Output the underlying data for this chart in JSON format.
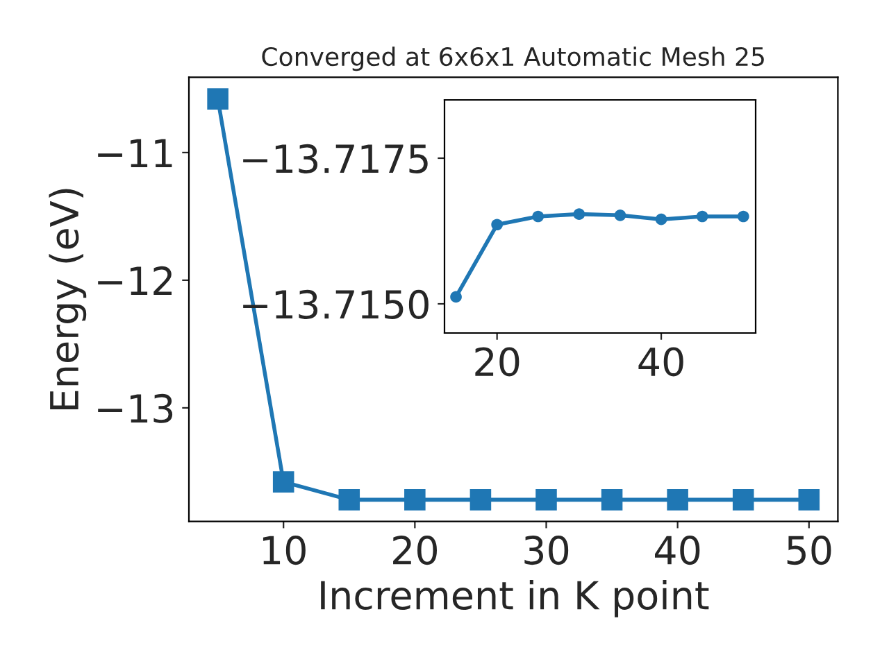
{
  "chart_data": [
    {
      "type": "line",
      "title": "Converged at 6x6x1 Automatic Mesh 25",
      "xlabel": "Increment in K point",
      "ylabel": "Energy (eV)",
      "x": [
        5,
        10,
        15,
        20,
        25,
        30,
        35,
        40,
        45,
        50
      ],
      "series": [
        {
          "color": "#1f77b4",
          "values": [
            -10.58,
            -13.58,
            -13.72,
            -13.72,
            -13.72,
            -13.72,
            -13.72,
            -13.72,
            -13.72,
            -13.72
          ]
        }
      ],
      "xlim": [
        2.8,
        52.2
      ],
      "ylim": [
        -13.89,
        -10.41
      ],
      "xticks": [
        10,
        20,
        30,
        40,
        50
      ],
      "yticks": [
        {
          "value": -13,
          "label": "−13"
        },
        {
          "value": -12,
          "label": "−12"
        },
        {
          "value": -11,
          "label": "−11"
        }
      ],
      "marker": "square",
      "line_style": "solid",
      "grid": false,
      "legend": false
    },
    {
      "type": "line",
      "x": [
        15,
        20,
        25,
        30,
        35,
        40,
        45,
        50
      ],
      "series": [
        {
          "color": "#1f77b4",
          "values": [
            -13.71512,
            -13.71636,
            -13.7165,
            -13.71654,
            -13.71652,
            -13.71645,
            -13.7165,
            -13.7165
          ]
        }
      ],
      "xlim": [
        13.6,
        51.5
      ],
      "ylim": [
        -13.7145,
        -13.7185
      ],
      "xticks": [
        20,
        40
      ],
      "yticks": [
        {
          "value": -13.7175,
          "label": "−13.7175"
        },
        {
          "value": -13.715,
          "label": "−13.7150"
        }
      ],
      "marker": "circle",
      "line_style": "solid",
      "grid": false,
      "legend": false
    }
  ]
}
